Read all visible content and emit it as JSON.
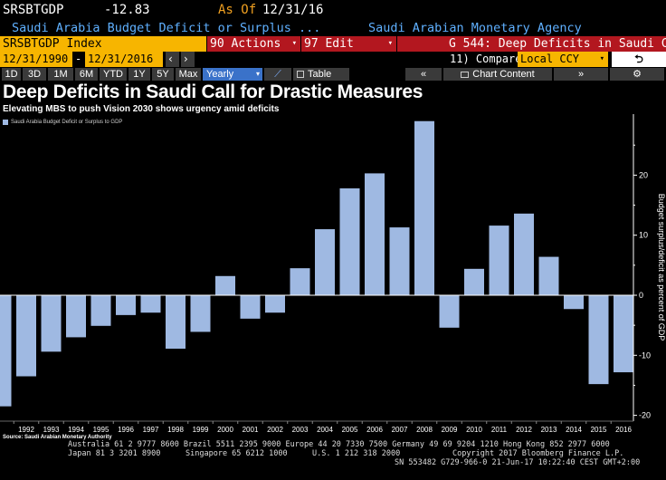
{
  "header": {
    "ticker": "SRSBTGDP",
    "value": "-12.83",
    "as_of_label": "As Of",
    "as_of_date": "12/31/16",
    "description": "Saudi Arabia Budget Deficit or Surplus ...",
    "source_agency": "Saudi Arabian Monetary Agency"
  },
  "toolbar": {
    "index_field": "SRSBTGDP Index",
    "actions_label": "90 Actions",
    "edit_label": "97 Edit",
    "chart_ref": "G 544: Deep Deficits in Saudi C",
    "start_date": "12/31/1990",
    "end_date": "12/31/2016",
    "compare_label": "11) Compare",
    "compare_value": "Local CCY",
    "periods": [
      "1D",
      "3D",
      "1M",
      "6M",
      "YTD",
      "1Y",
      "5Y",
      "Max"
    ],
    "frequency": "Yearly",
    "table_label": "Table",
    "chart_content_label": "Chart Content"
  },
  "headline": "Deep Deficits in Saudi Call for Drastic Measures",
  "subheadline": "Elevating MBS to push Vision 2030 shows urgency amid deficits",
  "chart_data": {
    "type": "bar",
    "title": "",
    "legend": [
      "Saudi Arabia Budget Deficit or Surplus to GDP"
    ],
    "legend_position": "top-left",
    "ylabel": "Budget surplus/deficit as percent of GDP",
    "xlabel": "",
    "ylim": [
      -20,
      29
    ],
    "yticks": [
      -20,
      -10,
      0,
      10,
      20
    ],
    "categories": [
      "1991",
      "1992",
      "1993",
      "1994",
      "1995",
      "1996",
      "1997",
      "1998",
      "1999",
      "2000",
      "2001",
      "2002",
      "2003",
      "2004",
      "2005",
      "2006",
      "2007",
      "2008",
      "2009",
      "2010",
      "2011",
      "2012",
      "2013",
      "2014",
      "2015",
      "2016"
    ],
    "x_tick_labels": [
      "1992",
      "1993",
      "1994",
      "1995",
      "1996",
      "1997",
      "1998",
      "1999",
      "2000",
      "2001",
      "2002",
      "2003",
      "2004",
      "2005",
      "2006",
      "2007",
      "2008",
      "2009",
      "2010",
      "2011",
      "2012",
      "2013",
      "2014",
      "2015",
      "2016"
    ],
    "series": [
      {
        "values": [
          -18.5,
          -13.5,
          -9.4,
          -7.0,
          -5.1,
          -3.3,
          -2.9,
          -8.9,
          -6.1,
          3.2,
          -3.9,
          -2.9,
          4.5,
          11.0,
          17.8,
          20.3,
          11.3,
          29.0,
          -5.4,
          4.4,
          11.6,
          13.6,
          6.4,
          -2.3,
          -14.8,
          -12.83
        ],
        "color": "#9fb9e2"
      }
    ],
    "grid": false
  },
  "source_note": "Source: Saudi Arabian Monetary Authority",
  "footer": {
    "line1": "Australia 61 2 9777 8600 Brazil 5511 2395 9000 Europe 44 20 7330 7500 Germany 49 69 9204 1210 Hong Kong 852 2977 6000",
    "line2a": "Japan 81 3 3201 8900",
    "line2b": "Singapore 65 6212 1000",
    "line2c": "U.S. 1 212 318 2000",
    "line2d": "Copyright 2017 Bloomberg Finance L.P.",
    "line3": "SN 553482 G729-966-0 21-Jun-17 10:22:40 CEST GMT+2:00"
  }
}
